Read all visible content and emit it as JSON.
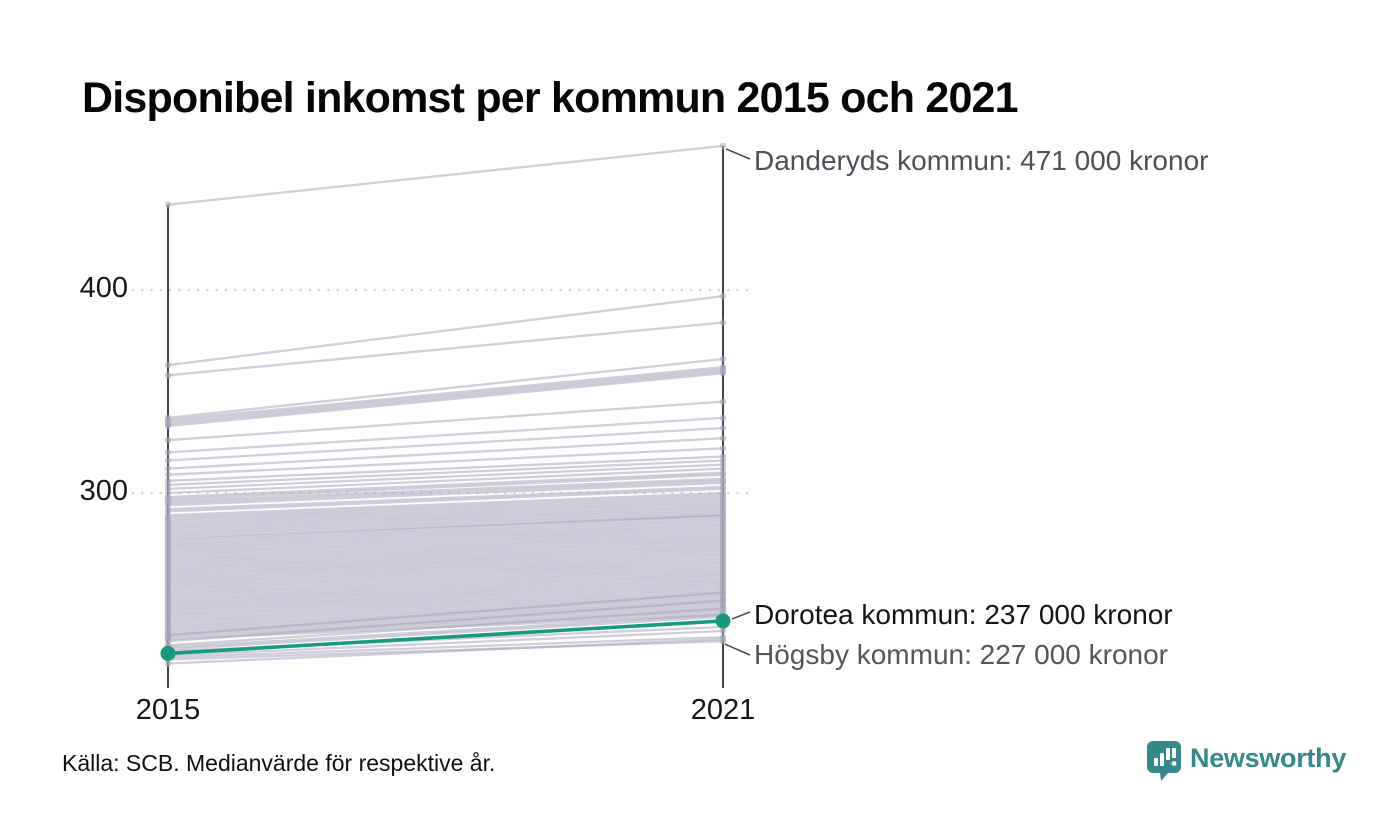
{
  "title": "Disponibel inkomst per kommun 2015 och 2021",
  "source": "Källa: SCB. Medianvärde för respektive år.",
  "logo": {
    "text": "Newsworthy",
    "color": "#36898b"
  },
  "chart_data": {
    "type": "line",
    "variant": "slope",
    "title": "Disponibel inkomst per kommun 2015 och 2021",
    "x_labels": [
      "2015",
      "2021"
    ],
    "y_ticks": [
      {
        "label": "400",
        "value": 400
      },
      {
        "label": "300",
        "value": 300
      }
    ],
    "ylim": [
      204,
      480
    ],
    "grid": "dotted-horizontal",
    "legend": "none",
    "colors": {
      "background_line": "#a8a6bb",
      "highlight": "#189a80",
      "axis": "#15151a",
      "gridline": "#d8d8da"
    },
    "highlight_series": {
      "name": "Dorotea kommun",
      "color": "#189a80",
      "values": [
        221,
        237
      ]
    },
    "annotations": [
      {
        "label": "Danderyds kommun: 471 000 kronor",
        "year": "2021",
        "value": 471
      },
      {
        "label": "Dorotea kommun: 237 000 kronor",
        "year": "2021",
        "value": 237
      },
      {
        "label": "Högsby kommun: 227 000 kronor",
        "year": "2021",
        "value": 227
      }
    ],
    "background_series": [
      [
        442,
        471
      ],
      [
        363,
        397
      ],
      [
        358,
        384
      ],
      [
        337,
        366
      ],
      [
        336,
        362
      ],
      [
        335,
        361
      ],
      [
        334,
        360
      ],
      [
        333,
        359
      ],
      [
        326,
        345
      ],
      [
        320,
        337
      ],
      [
        316,
        332
      ],
      [
        312,
        327
      ],
      [
        309,
        322
      ],
      [
        306,
        318
      ],
      [
        304,
        316
      ],
      [
        302,
        314
      ],
      [
        300,
        312
      ],
      [
        298,
        310
      ],
      [
        297,
        309
      ],
      [
        296,
        307
      ],
      [
        295,
        306
      ],
      [
        294,
        305
      ],
      [
        292,
        303
      ],
      [
        291,
        302
      ],
      [
        289,
        300
      ],
      [
        288,
        299
      ],
      [
        287,
        298
      ],
      [
        286,
        297
      ],
      [
        285,
        296
      ],
      [
        284,
        295
      ],
      [
        283,
        294
      ],
      [
        282,
        293
      ],
      [
        281,
        292
      ],
      [
        280,
        291
      ],
      [
        279,
        290
      ],
      [
        278,
        289
      ],
      [
        277,
        289
      ],
      [
        276,
        288
      ],
      [
        275,
        287
      ],
      [
        274,
        286
      ],
      [
        273,
        285
      ],
      [
        272,
        284
      ],
      [
        271,
        283
      ],
      [
        270,
        282
      ],
      [
        269,
        281
      ],
      [
        268,
        280
      ],
      [
        267,
        279
      ],
      [
        266,
        278
      ],
      [
        265,
        277
      ],
      [
        264,
        276
      ],
      [
        263,
        275
      ],
      [
        262,
        274
      ],
      [
        261,
        273
      ],
      [
        260,
        272
      ],
      [
        259,
        271
      ],
      [
        258,
        270
      ],
      [
        257,
        269
      ],
      [
        256,
        268
      ],
      [
        255,
        267
      ],
      [
        254,
        266
      ],
      [
        253,
        265
      ],
      [
        252,
        264
      ],
      [
        251,
        263
      ],
      [
        250,
        262
      ],
      [
        249,
        261
      ],
      [
        248,
        260
      ],
      [
        247,
        259
      ],
      [
        246,
        258
      ],
      [
        245,
        257
      ],
      [
        244,
        256
      ],
      [
        243,
        255
      ],
      [
        242,
        254
      ],
      [
        241,
        253
      ],
      [
        240,
        252
      ],
      [
        239,
        251
      ],
      [
        238,
        250
      ],
      [
        237,
        249
      ],
      [
        236,
        248
      ],
      [
        235,
        247
      ],
      [
        234,
        246
      ],
      [
        233,
        245
      ],
      [
        232,
        244
      ],
      [
        231,
        243
      ],
      [
        230,
        242
      ],
      [
        229,
        241
      ],
      [
        228,
        240
      ],
      [
        230,
        251
      ],
      [
        227,
        247
      ],
      [
        225,
        243
      ],
      [
        224,
        240
      ],
      [
        223,
        239
      ],
      [
        222,
        234
      ],
      [
        220,
        232
      ],
      [
        219,
        229
      ],
      [
        218,
        227
      ],
      [
        216,
        228
      ]
    ]
  }
}
